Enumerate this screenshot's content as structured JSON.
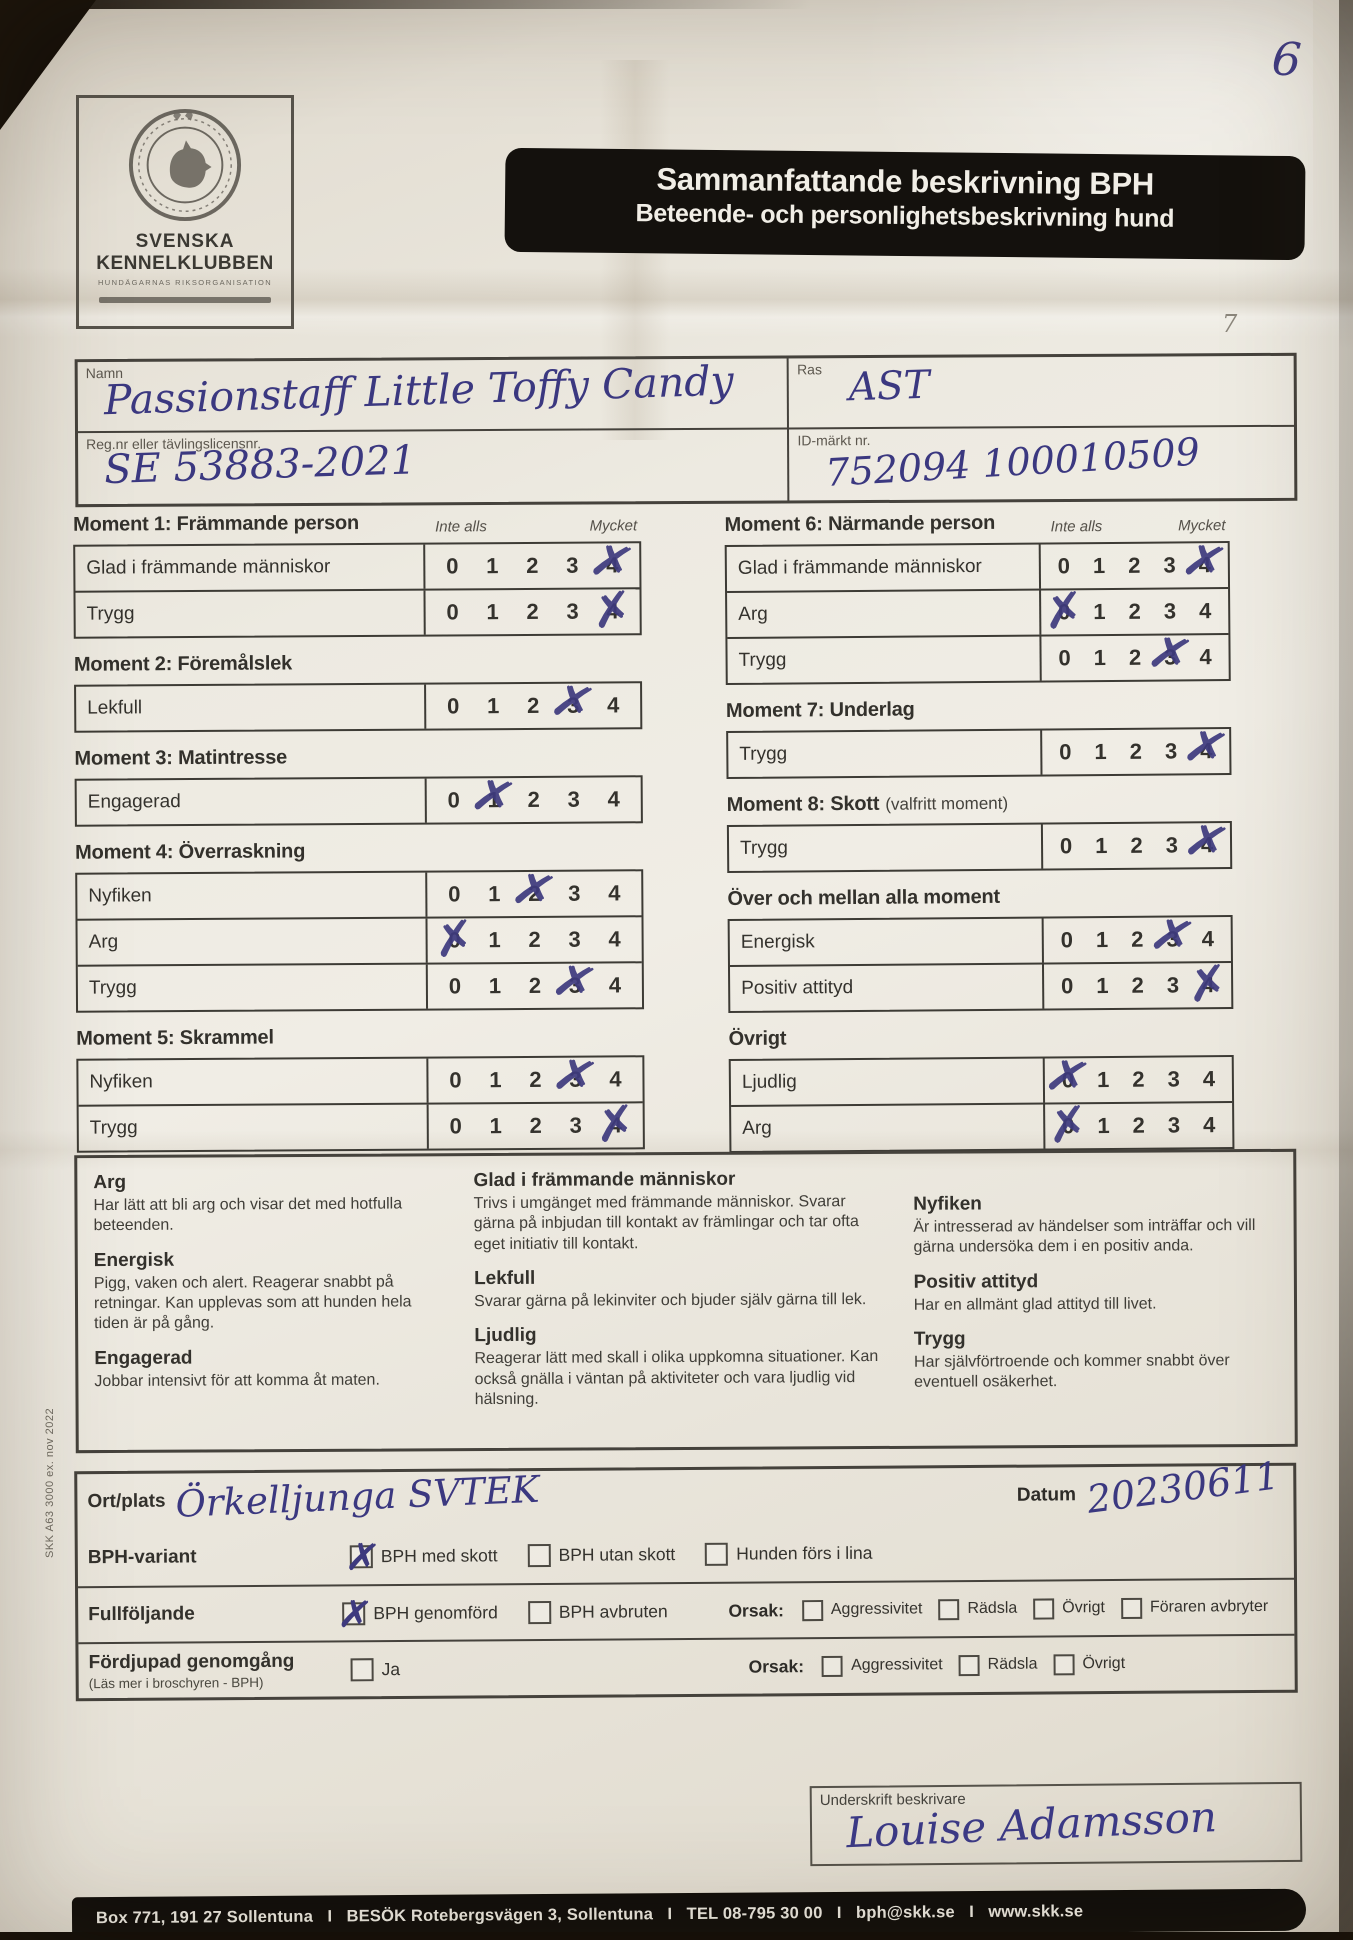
{
  "page": {
    "handwritten_number": "6",
    "pencil_mark": "7"
  },
  "org": {
    "name_line1": "SVENSKA",
    "name_line2": "KENNELKLUBBEN",
    "tagline": "HUNDÄGARNAS RIKSORGANISATION"
  },
  "banner": {
    "title": "Sammanfattande beskrivning BPH",
    "subtitle": "Beteende- och personlighetsbeskrivning hund"
  },
  "id_box": {
    "name_label": "Namn",
    "name_value": "Passionstaff Little Toffy Candy",
    "ras_label": "Ras",
    "ras_value": "AST",
    "regnr_label": "Reg.nr eller tävlingslicensnr.",
    "regnr_value": "SE 53883-2021",
    "idnr_label": "ID-märkt nr.",
    "idnr_value": "752094 100010509"
  },
  "scale": {
    "left_label": "Inte alls",
    "right_label": "Mycket",
    "values": [
      "0",
      "1",
      "2",
      "3",
      "4"
    ]
  },
  "moments_left": [
    {
      "title": "Moment 1: Främmande person",
      "scale_header": true,
      "rows": [
        {
          "label": "Glad i främmande människor",
          "marked": 4
        },
        {
          "label": "Trygg",
          "marked": 4
        }
      ]
    },
    {
      "title": "Moment 2: Föremålslek",
      "rows": [
        {
          "label": "Lekfull",
          "marked": 3
        }
      ]
    },
    {
      "title": "Moment 3: Matintresse",
      "rows": [
        {
          "label": "Engagerad",
          "marked": 1
        }
      ]
    },
    {
      "title": "Moment 4: Överraskning",
      "rows": [
        {
          "label": "Nyfiken",
          "marked": 2
        },
        {
          "label": "Arg",
          "marked": 0
        },
        {
          "label": "Trygg",
          "marked": 3
        }
      ]
    },
    {
      "title": "Moment 5: Skrammel",
      "rows": [
        {
          "label": "Nyfiken",
          "marked": 3
        },
        {
          "label": "Trygg",
          "marked": 4
        }
      ]
    }
  ],
  "moments_right": [
    {
      "title": "Moment 6: Närmande person",
      "scale_header": true,
      "rows": [
        {
          "label": "Glad i främmande människor",
          "marked": 4
        },
        {
          "label": "Arg",
          "marked": 0
        },
        {
          "label": "Trygg",
          "marked": 3
        }
      ]
    },
    {
      "title": "Moment 7: Underlag",
      "rows": [
        {
          "label": "Trygg",
          "marked": 4
        }
      ]
    },
    {
      "title": "Moment 8: Skott",
      "suffix": "(valfritt moment)",
      "rows": [
        {
          "label": "Trygg",
          "marked": 4
        }
      ]
    },
    {
      "title": "Över och mellan alla moment",
      "rows": [
        {
          "label": "Energisk",
          "marked": 3
        },
        {
          "label": "Positiv attityd",
          "marked": 4
        }
      ]
    },
    {
      "title": "Övrigt",
      "rows": [
        {
          "label": "Ljudlig",
          "marked": 0
        },
        {
          "label": "Arg",
          "marked": 0
        }
      ]
    }
  ],
  "definitions": {
    "columns": [
      [
        {
          "term": "Arg",
          "text": "Har lätt att bli arg och visar det med hotfulla beteenden."
        },
        {
          "term": "Energisk",
          "text": "Pigg, vaken och alert. Reagerar snabbt på retningar. Kan upplevas som att hunden hela tiden är på gång."
        },
        {
          "term": "Engagerad",
          "text": "Jobbar intensivt för att komma åt maten."
        }
      ],
      [
        {
          "term": "Glad i främmande människor",
          "text": "Trivs i umgänget med främmande människor. Svarar gärna på inbjudan till kontakt av främlingar och tar ofta eget initiativ till kontakt."
        },
        {
          "term": "Lekfull",
          "text": "Svarar gärna på lekinviter och bjuder själv gärna till lek."
        },
        {
          "term": "Ljudlig",
          "text": "Reagerar lätt med skall i olika uppkomna situationer. Kan också gnälla i väntan på aktiviteter och vara ljudlig vid hälsning."
        }
      ],
      [
        {
          "term": "Nyfiken",
          "text": "Är intresserad av händelser som inträffar och vill gärna undersöka dem i en positiv anda."
        },
        {
          "term": "Positiv attityd",
          "text": "Har en allmänt glad attityd till livet."
        },
        {
          "term": "Trygg",
          "text": "Har självförtroende och kommer snabbt över eventuell osäkerhet."
        }
      ]
    ]
  },
  "bottom_form": {
    "ort_label": "Ort/plats",
    "ort_value": "Örkelljunga  SVTEK",
    "datum_label": "Datum",
    "datum_value": "20230611",
    "rows": [
      {
        "label": "BPH-variant",
        "options": [
          {
            "label": "BPH med skott",
            "checked": true
          },
          {
            "label": "BPH utan skott",
            "checked": false
          },
          {
            "label": "Hunden förs i lina",
            "checked": false
          }
        ]
      },
      {
        "label": "Fullföljande",
        "options": [
          {
            "label": "BPH genomförd",
            "checked": true
          },
          {
            "label": "BPH avbruten",
            "checked": false
          }
        ],
        "orsak_label": "Orsak:",
        "orsak_options": [
          {
            "label": "Aggressivitet",
            "checked": false
          },
          {
            "label": "Rädsla",
            "checked": false
          },
          {
            "label": "Övrigt",
            "checked": false
          },
          {
            "label": "Föraren avbryter",
            "checked": false
          }
        ]
      },
      {
        "label": "Fördjupad genomgång",
        "sublabel": "(Läs mer i broschyren - BPH)",
        "options": [
          {
            "label": "Ja",
            "checked": false
          }
        ],
        "orsak_label": "Orsak:",
        "orsak_options": [
          {
            "label": "Aggressivitet",
            "checked": false
          },
          {
            "label": "Rädsla",
            "checked": false
          },
          {
            "label": "Övrigt",
            "checked": false
          }
        ]
      }
    ]
  },
  "signature": {
    "label": "Underskrift beskrivare",
    "value": "Louise Adamsson"
  },
  "footer": {
    "text": "Box 771, 191 27 Sollentuna   I   BESÖK Rotebergsvägen 3, Sollentuna   I   TEL 08-795 30 00   I   bph@skk.se   I   www.skk.se"
  },
  "side_text": "SKK A63  3000 ex. nov 2022"
}
